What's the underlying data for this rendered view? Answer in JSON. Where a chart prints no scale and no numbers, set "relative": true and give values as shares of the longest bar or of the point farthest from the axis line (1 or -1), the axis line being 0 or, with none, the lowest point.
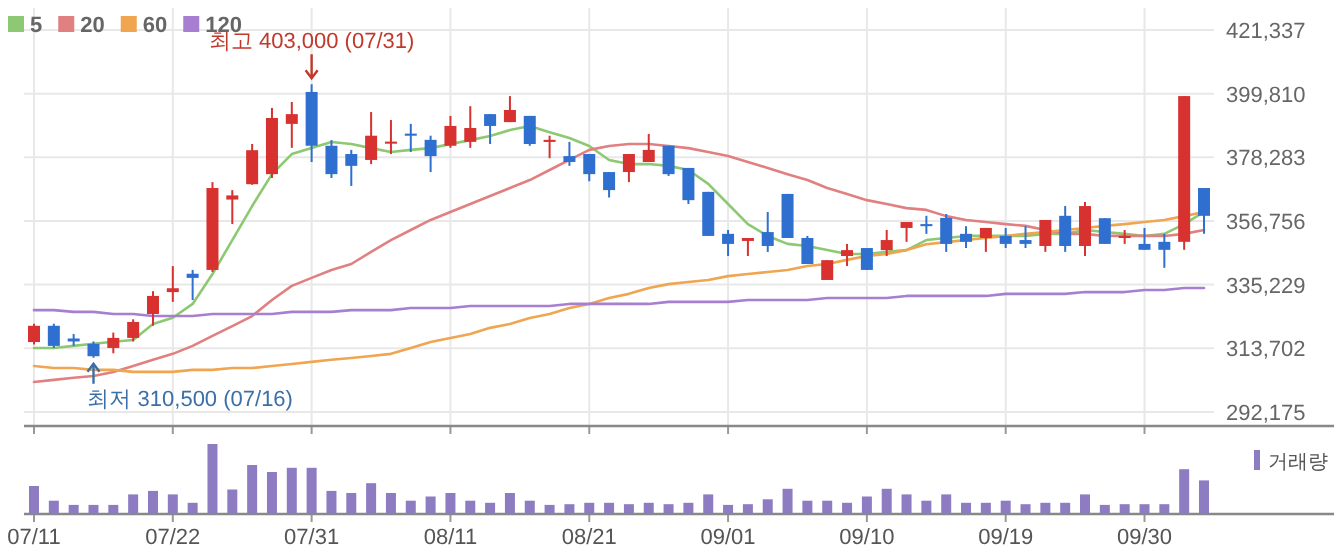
{
  "chart_data": [
    {
      "type": "candlestick",
      "categories": [
        null,
        null,
        null,
        null,
        null,
        null,
        null,
        null,
        null,
        null,
        null,
        null,
        null,
        null,
        null,
        null,
        null,
        null,
        null,
        null,
        null,
        null,
        null,
        null,
        null,
        null,
        null,
        null,
        null,
        null,
        null,
        null,
        null,
        null,
        null,
        null,
        null,
        null,
        null,
        null,
        null,
        null,
        null,
        null,
        null,
        null,
        null,
        null,
        null,
        null,
        null,
        null,
        null,
        null,
        null,
        null,
        null,
        null,
        null,
        null
      ],
      "ohlc": [
        [
          315800,
          322000,
          315000,
          321300
        ],
        [
          321300,
          322000,
          313800,
          314500
        ],
        [
          317000,
          318500,
          314500,
          316000
        ],
        [
          315200,
          316000,
          310500,
          311000
        ],
        [
          313800,
          319000,
          312000,
          317200
        ],
        [
          317200,
          323500,
          316000,
          322600
        ],
        [
          325300,
          333000,
          321300,
          331400
        ],
        [
          332700,
          341500,
          329400,
          334000
        ],
        [
          338900,
          340200,
          330000,
          337500
        ],
        [
          340200,
          369900,
          339500,
          367900
        ],
        [
          364000,
          367200,
          355700,
          365400
        ],
        [
          369200,
          382800,
          369000,
          380700
        ],
        [
          372600,
          395000,
          371300,
          391600
        ],
        [
          389600,
          397000,
          381500,
          392900
        ],
        [
          400400,
          403000,
          376700,
          382200
        ],
        [
          382200,
          384100,
          371300,
          372600
        ],
        [
          379400,
          380800,
          368600,
          375400
        ],
        [
          377400,
          393600,
          376000,
          385600
        ],
        [
          382900,
          390900,
          379400,
          383600
        ],
        [
          386300,
          389600,
          380100,
          385600
        ],
        [
          384200,
          385600,
          373300,
          378700
        ],
        [
          382200,
          392300,
          381500,
          388900
        ],
        [
          383500,
          395600,
          381500,
          388200
        ],
        [
          392900,
          392900,
          382800,
          388900
        ],
        [
          390200,
          399000,
          390200,
          394300
        ],
        [
          392300,
          392300,
          382200,
          382800
        ],
        [
          383500,
          385600,
          378000,
          384200
        ],
        [
          378700,
          383500,
          375400,
          376700
        ],
        [
          379400,
          379400,
          370200,
          372600
        ],
        [
          373300,
          373300,
          364700,
          367200
        ],
        [
          373300,
          379400,
          369900,
          379400
        ],
        [
          376700,
          386200,
          376700,
          380800
        ],
        [
          382200,
          382200,
          372000,
          372600
        ],
        [
          374700,
          374700,
          362500,
          363800
        ],
        [
          366600,
          366600,
          351700,
          351700
        ],
        [
          352400,
          353700,
          344900,
          349000
        ],
        [
          350000,
          351000,
          344900,
          351000
        ],
        [
          353000,
          359800,
          346300,
          348300
        ],
        [
          365900,
          365900,
          351000,
          351000
        ],
        [
          351000,
          351700,
          342200,
          342200
        ],
        [
          336800,
          343500,
          336800,
          343500
        ],
        [
          344900,
          349000,
          341500,
          346900
        ],
        [
          347600,
          347600,
          340200,
          340200
        ],
        [
          346900,
          353700,
          344900,
          350300
        ],
        [
          354400,
          356400,
          349700,
          356400
        ],
        [
          355700,
          358500,
          352400,
          355000
        ],
        [
          357800,
          359100,
          346300,
          349000
        ],
        [
          352400,
          355000,
          347600,
          349700
        ],
        [
          351000,
          354400,
          346300,
          354400
        ],
        [
          351700,
          354400,
          347600,
          349000
        ],
        [
          350300,
          355000,
          347600,
          349000
        ],
        [
          348300,
          357100,
          346300,
          357100
        ],
        [
          358500,
          361800,
          346300,
          348300
        ],
        [
          348300,
          363200,
          344900,
          361800
        ],
        [
          357700,
          357700,
          349000,
          349000
        ],
        [
          351000,
          353700,
          349000,
          351700
        ],
        [
          349000,
          354400,
          347000,
          347000
        ],
        [
          349700,
          352400,
          340900,
          347000
        ],
        [
          349700,
          399000,
          347000,
          399000
        ],
        [
          367900,
          367900,
          352400,
          358500
        ]
      ],
      "series": [
        {
          "name": "5",
          "type": "line",
          "color": "#8cc972",
          "values": [
            313800,
            313800,
            314500,
            315200,
            315900,
            316500,
            321900,
            324000,
            328700,
            338800,
            350300,
            361800,
            372600,
            379400,
            381400,
            383500,
            382800,
            381400,
            380100,
            380800,
            381400,
            382800,
            384100,
            385500,
            387500,
            388900,
            386800,
            384800,
            382100,
            377400,
            376000,
            376000,
            375400,
            374000,
            369300,
            362500,
            355700,
            351700,
            349000,
            348300,
            346900,
            345600,
            345600,
            346300,
            346900,
            350300,
            351000,
            351700,
            351700,
            351700,
            351700,
            352400,
            352400,
            353700,
            353000,
            352400,
            351700,
            352400,
            355700,
            359800
          ]
        },
        {
          "name": "20",
          "type": "line",
          "color": "#e08080",
          "values": [
            302300,
            303000,
            303700,
            304300,
            305700,
            307700,
            309800,
            311800,
            314500,
            317900,
            321200,
            324600,
            330000,
            334800,
            337500,
            340200,
            342200,
            346300,
            350300,
            353700,
            357100,
            359800,
            362500,
            365200,
            367900,
            370600,
            374000,
            377400,
            380800,
            382100,
            382800,
            382800,
            382100,
            381400,
            380100,
            378700,
            376700,
            374700,
            372600,
            370600,
            367900,
            365900,
            363800,
            362500,
            361100,
            360500,
            358400,
            357100,
            356400,
            355700,
            355100,
            353700,
            352400,
            352400,
            351700,
            351700,
            351700,
            351700,
            352400,
            353700
          ]
        },
        {
          "name": "60",
          "type": "line",
          "color": "#f0a550",
          "values": [
            307700,
            307000,
            307000,
            306400,
            306400,
            305700,
            305700,
            305700,
            306400,
            306400,
            307000,
            307000,
            307700,
            308400,
            309100,
            309800,
            310400,
            311100,
            311800,
            313800,
            315800,
            317200,
            318500,
            320600,
            321900,
            323900,
            325300,
            327300,
            328700,
            330700,
            332100,
            334100,
            335400,
            336100,
            336800,
            338100,
            338800,
            339500,
            340200,
            341500,
            342200,
            343600,
            344900,
            345600,
            346900,
            348900,
            349600,
            350300,
            351000,
            351700,
            352400,
            353000,
            353700,
            354400,
            355100,
            355700,
            356400,
            357100,
            358400,
            359800
          ]
        },
        {
          "name": "120",
          "type": "line",
          "color": "#a77fd0",
          "values": [
            326600,
            326600,
            326000,
            326000,
            325300,
            325300,
            324600,
            324600,
            324600,
            325300,
            325300,
            325300,
            325300,
            326000,
            326000,
            326000,
            326600,
            326600,
            326600,
            327300,
            327300,
            327300,
            328000,
            328000,
            328000,
            328000,
            328000,
            328700,
            328700,
            328700,
            328700,
            328700,
            329400,
            329400,
            329400,
            329400,
            330000,
            330000,
            330000,
            330000,
            330700,
            330700,
            330700,
            330700,
            331400,
            331400,
            331400,
            331400,
            331400,
            332100,
            332100,
            332100,
            332100,
            332700,
            332700,
            332700,
            333400,
            333400,
            334100,
            334100
          ]
        }
      ],
      "ylim": [
        287400,
        428800
      ],
      "yticks": [
        {
          "value": 292175,
          "label": "292,175"
        },
        {
          "value": 313702,
          "label": "313,702"
        },
        {
          "value": 335229,
          "label": "335,229"
        },
        {
          "value": 356756,
          "label": "356,756"
        },
        {
          "value": 378283,
          "label": "378,283"
        },
        {
          "value": 399810,
          "label": "399,810"
        },
        {
          "value": 421337,
          "label": "421,337"
        }
      ],
      "grid": true,
      "legend": "top left",
      "tick_labels": "y",
      "annotations": [
        {
          "text": "최고 403,000 (07/31)",
          "y": 403000
        },
        {
          "text": "최저 310,500 (07/16)",
          "y": 310500
        }
      ]
    },
    {
      "type": "bar",
      "categories": [
        "07/11",
        null,
        null,
        null,
        null,
        null,
        null,
        "07/22",
        null,
        null,
        null,
        null,
        null,
        null,
        "07/31",
        null,
        null,
        null,
        null,
        null,
        null,
        "08/11",
        null,
        null,
        null,
        null,
        null,
        null,
        "08/21",
        null,
        null,
        null,
        null,
        null,
        null,
        "09/01",
        null,
        null,
        null,
        null,
        null,
        null,
        "09/10",
        null,
        null,
        null,
        null,
        null,
        null,
        "09/19",
        null,
        null,
        null,
        null,
        null,
        null,
        "09/30",
        null,
        null,
        null
      ],
      "series": [
        {
          "name": "거래량",
          "color": "#8e7cc3",
          "values": [
            0.4,
            0.19,
            0.13,
            0.13,
            0.13,
            0.28,
            0.33,
            0.28,
            0.16,
            1,
            0.35,
            0.7,
            0.6,
            0.66,
            0.66,
            0.33,
            0.3,
            0.44,
            0.3,
            0.19,
            0.25,
            0.3,
            0.19,
            0.16,
            0.3,
            0.19,
            0.13,
            0.14,
            0.16,
            0.16,
            0.14,
            0.16,
            0.14,
            0.16,
            0.28,
            0.13,
            0.14,
            0.21,
            0.36,
            0.19,
            0.19,
            0.16,
            0.25,
            0.36,
            0.28,
            0.19,
            0.28,
            0.16,
            0.16,
            0.19,
            0.14,
            0.16,
            0.16,
            0.28,
            0.13,
            0.14,
            0.14,
            0.14,
            0.64,
            0.48
          ]
        }
      ],
      "relative": true,
      "legend": "top right",
      "tick_labels": "x"
    }
  ]
}
